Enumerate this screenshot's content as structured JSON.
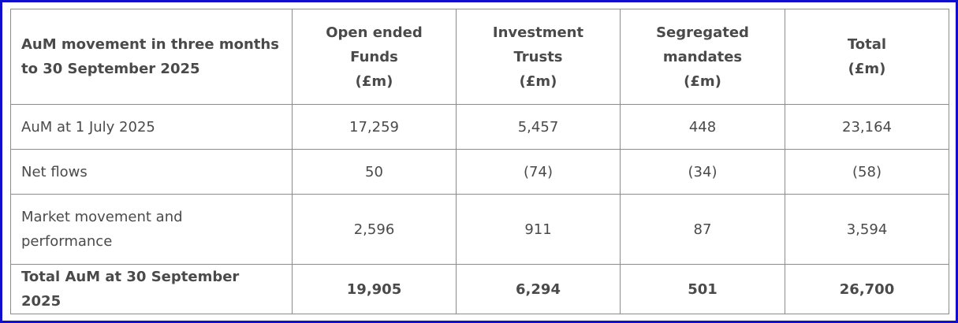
{
  "table": {
    "header": [
      [
        "AuM movement in three months",
        "to 30 September 2025"
      ],
      [
        "Open ended",
        "Funds",
        "(£m)"
      ],
      [
        "Investment Trusts",
        "(£m)"
      ],
      [
        "Segregated",
        "mandates",
        "(£m)"
      ],
      [
        "Total",
        "(£m)"
      ]
    ],
    "rows": [
      [
        [
          "AuM at 1 July 2025"
        ],
        "17,259",
        "5,457",
        "448",
        "23,164"
      ],
      [
        [
          "Net flows"
        ],
        "50",
        "(74)",
        "(34)",
        "(58)"
      ],
      [
        [
          "Market movement and",
          "performance"
        ],
        "2,596",
        "911",
        "87",
        "3,594"
      ],
      [
        [
          "Total AuM at 30 September 2025"
        ],
        "19,905",
        "6,294",
        "501",
        "26,700"
      ]
    ]
  }
}
